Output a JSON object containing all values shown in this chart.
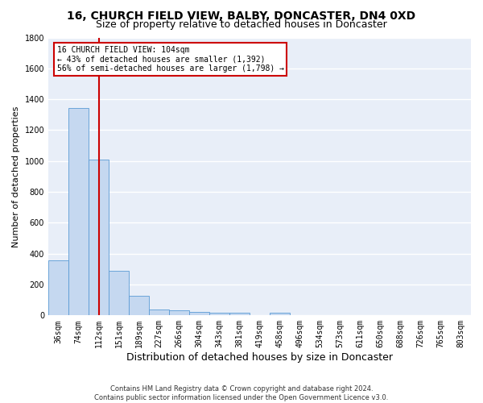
{
  "title": "16, CHURCH FIELD VIEW, BALBY, DONCASTER, DN4 0XD",
  "subtitle": "Size of property relative to detached houses in Doncaster",
  "xlabel": "Distribution of detached houses by size in Doncaster",
  "ylabel": "Number of detached properties",
  "footnote": "Contains HM Land Registry data © Crown copyright and database right 2024.\nContains public sector information licensed under the Open Government Licence v3.0.",
  "bin_labels": [
    "36sqm",
    "74sqm",
    "112sqm",
    "151sqm",
    "189sqm",
    "227sqm",
    "266sqm",
    "304sqm",
    "343sqm",
    "381sqm",
    "419sqm",
    "458sqm",
    "496sqm",
    "534sqm",
    "573sqm",
    "611sqm",
    "650sqm",
    "688sqm",
    "726sqm",
    "765sqm",
    "803sqm"
  ],
  "bar_values": [
    355,
    1345,
    1010,
    290,
    125,
    40,
    35,
    25,
    20,
    15,
    0,
    20,
    0,
    0,
    0,
    0,
    0,
    0,
    0,
    0,
    0
  ],
  "bar_color": "#c5d8f0",
  "bar_edge_color": "#5a9bd5",
  "vline_x_idx": 2,
  "vline_color": "#cc0000",
  "ylim": [
    0,
    1800
  ],
  "yticks": [
    0,
    200,
    400,
    600,
    800,
    1000,
    1200,
    1400,
    1600,
    1800
  ],
  "annotation_line1": "16 CHURCH FIELD VIEW: 104sqm",
  "annotation_line2": "← 43% of detached houses are smaller (1,392)",
  "annotation_line3": "56% of semi-detached houses are larger (1,798) →",
  "annotation_box_facecolor": "#ffffff",
  "annotation_box_edgecolor": "#cc0000",
  "bg_color": "#e8eef8",
  "grid_color": "#ffffff",
  "title_fontsize": 10,
  "subtitle_fontsize": 9,
  "ylabel_fontsize": 8,
  "xlabel_fontsize": 9,
  "tick_fontsize": 7,
  "annotation_fontsize": 7,
  "footnote_fontsize": 6
}
